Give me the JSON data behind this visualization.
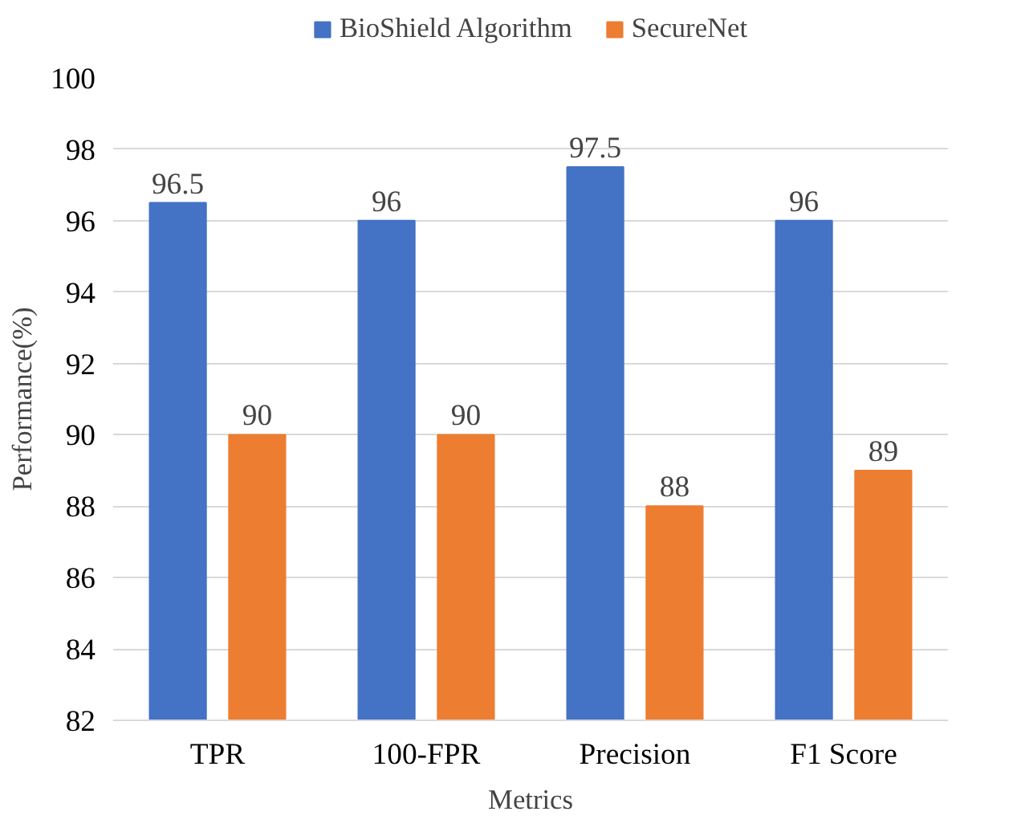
{
  "chart_data": {
    "type": "bar",
    "xlabel": "Metrics",
    "ylabel": "Performance(%)",
    "categories": [
      "TPR",
      "100-FPR",
      "Precision",
      "F1 Score"
    ],
    "series": [
      {
        "name": "BioShield Algorithm",
        "color": "#4472c4",
        "values": [
          96.5,
          96,
          97.5,
          96
        ]
      },
      {
        "name": "SecureNet",
        "color": "#ed7d31",
        "values": [
          90,
          90,
          88,
          89
        ]
      }
    ],
    "ylim": [
      82,
      100
    ],
    "yticks": [
      82,
      84,
      86,
      88,
      90,
      92,
      94,
      96,
      98,
      100
    ],
    "grid": "y",
    "legend": "top",
    "data_labels": true
  }
}
